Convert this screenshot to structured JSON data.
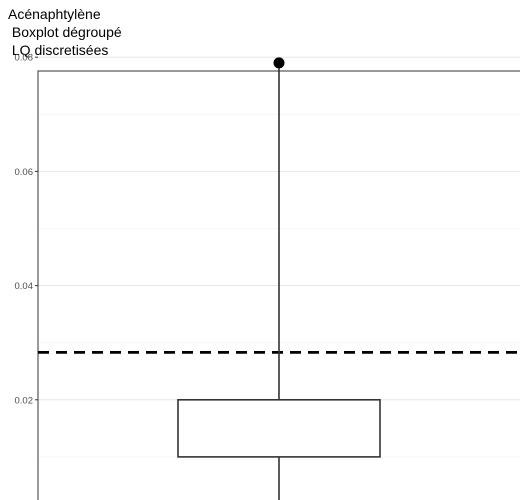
{
  "chart_data": {
    "type": "boxplot",
    "title_lines": [
      "Acénaphtylène",
      " Boxplot dégroupé",
      " LQ discretisées"
    ],
    "xlabel": "",
    "ylabel": "",
    "y_ticks": [
      0.02,
      0.04,
      0.06,
      0.08
    ],
    "y_tick_labels": [
      "0.02",
      "0.04",
      "0.06",
      "0.08"
    ],
    "ylim": [
      0.0,
      0.081
    ],
    "grid": true,
    "box": {
      "q1": 0.01,
      "q3": 0.02,
      "whisker_high": 0.079
    },
    "outliers": [
      0.079
    ],
    "reference_line": {
      "value": 0.0283,
      "style": "dashed"
    }
  }
}
